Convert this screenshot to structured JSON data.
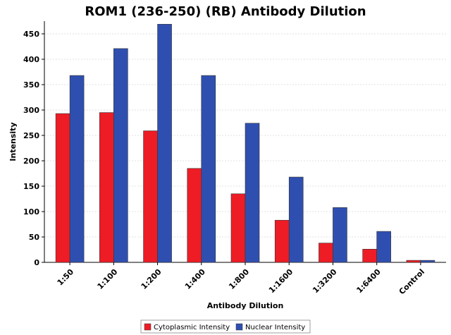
{
  "chart_data": {
    "type": "bar",
    "title": "ROM1 (236-250) (RB) Antibody Dilution",
    "xlabel": "Antibody Dilution",
    "ylabel": "Intensity",
    "categories": [
      "1:50",
      "1:100",
      "1:200",
      "1:400",
      "1:800",
      "1:1600",
      "1:3200",
      "1:6400",
      "Control"
    ],
    "series": [
      {
        "name": "Cytoplasmic Intensity",
        "color": "#ee1c25",
        "values": [
          293,
          295,
          259,
          185,
          135,
          83,
          38,
          26,
          4
        ]
      },
      {
        "name": "Nuclear Intensity",
        "color": "#2f4fb0",
        "values": [
          368,
          421,
          469,
          368,
          274,
          168,
          108,
          61,
          4
        ]
      }
    ],
    "ylim": [
      0,
      475
    ],
    "yticks": [
      0,
      50,
      100,
      150,
      200,
      250,
      300,
      350,
      400,
      450
    ],
    "grid": true,
    "legend_position": "bottom-center"
  }
}
